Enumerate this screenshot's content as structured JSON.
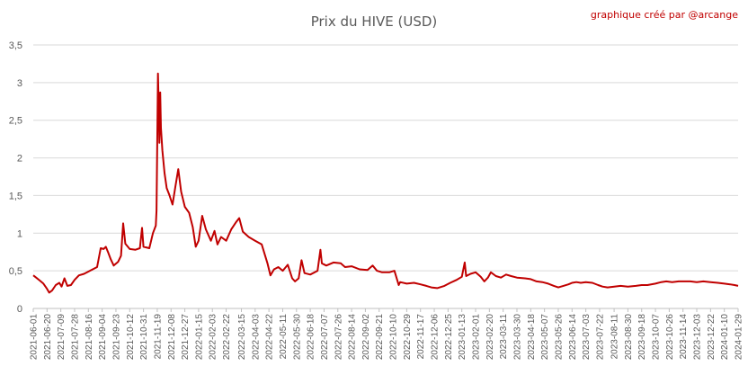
{
  "chart_data": {
    "type": "line",
    "title": "Prix du HIVE (USD)",
    "credit": "graphique créé par @arcange",
    "xlabel": "",
    "ylabel": "",
    "ylim": [
      0,
      3.5
    ],
    "y_ticks": [
      "0",
      "0,5",
      "1",
      "1,5",
      "2",
      "2,5",
      "3",
      "3,5"
    ],
    "y_tick_values": [
      0,
      0.5,
      1,
      1.5,
      2,
      2.5,
      3,
      3.5
    ],
    "x_range": [
      "2021-06-01",
      "2024-01-29"
    ],
    "x_ticks": [
      "2021-06-01",
      "2021-06-20",
      "2021-07-09",
      "2021-07-28",
      "2021-08-16",
      "2021-09-04",
      "2021-09-23",
      "2021-10-12",
      "2021-10-31",
      "2021-11-19",
      "2021-12-08",
      "2021-12-27",
      "2022-01-15",
      "2022-02-03",
      "2022-02-22",
      "2022-03-15",
      "2022-04-03",
      "2022-04-22",
      "2022-05-11",
      "2022-05-30",
      "2022-06-18",
      "2022-07-07",
      "2022-07-26",
      "2022-08-14",
      "2022-09-02",
      "2022-09-21",
      "2022-10-10",
      "2022-10-29",
      "2022-11-17",
      "2022-12-06",
      "2022-12-25",
      "2023-01-13",
      "2023-02-01",
      "2023-02-20",
      "2023-03-11",
      "2023-03-30",
      "2023-04-18",
      "2023-05-07",
      "2023-05-26",
      "2023-06-14",
      "2023-07-03",
      "2023-07-22",
      "2023-08-11",
      "2023-08-30",
      "2023-09-18",
      "2023-10-07",
      "2023-10-26",
      "2023-11-14",
      "2023-12-03",
      "2023-12-22",
      "2024-01-10",
      "2024-01-29"
    ],
    "gridlines": true,
    "legend": "none",
    "series": [
      {
        "color": "#c00000",
        "points": [
          [
            "2021-06-01",
            0.44
          ],
          [
            "2021-06-05",
            0.41
          ],
          [
            "2021-06-10",
            0.37
          ],
          [
            "2021-06-15",
            0.33
          ],
          [
            "2021-06-20",
            0.26
          ],
          [
            "2021-06-23",
            0.21
          ],
          [
            "2021-06-27",
            0.24
          ],
          [
            "2021-07-02",
            0.31
          ],
          [
            "2021-07-07",
            0.34
          ],
          [
            "2021-07-10",
            0.29
          ],
          [
            "2021-07-14",
            0.4
          ],
          [
            "2021-07-18",
            0.3
          ],
          [
            "2021-07-23",
            0.31
          ],
          [
            "2021-07-28",
            0.38
          ],
          [
            "2021-08-03",
            0.44
          ],
          [
            "2021-08-10",
            0.46
          ],
          [
            "2021-08-16",
            0.49
          ],
          [
            "2021-08-22",
            0.52
          ],
          [
            "2021-08-28",
            0.55
          ],
          [
            "2021-09-02",
            0.8
          ],
          [
            "2021-09-06",
            0.79
          ],
          [
            "2021-09-09",
            0.82
          ],
          [
            "2021-09-12",
            0.75
          ],
          [
            "2021-09-16",
            0.65
          ],
          [
            "2021-09-20",
            0.57
          ],
          [
            "2021-09-26",
            0.62
          ],
          [
            "2021-09-30",
            0.7
          ],
          [
            "2021-10-03",
            1.13
          ],
          [
            "2021-10-06",
            0.86
          ],
          [
            "2021-10-12",
            0.79
          ],
          [
            "2021-10-20",
            0.78
          ],
          [
            "2021-10-26",
            0.8
          ],
          [
            "2021-10-29",
            1.07
          ],
          [
            "2021-10-31",
            0.82
          ],
          [
            "2021-11-08",
            0.8
          ],
          [
            "2021-11-13",
            1.0
          ],
          [
            "2021-11-17",
            1.1
          ],
          [
            "2021-11-18",
            1.3
          ],
          [
            "2021-11-19",
            2.2
          ],
          [
            "2021-11-20",
            3.12
          ],
          [
            "2021-11-21",
            2.7
          ],
          [
            "2021-11-22",
            2.2
          ],
          [
            "2021-11-23",
            2.87
          ],
          [
            "2021-11-24",
            2.4
          ],
          [
            "2021-11-26",
            2.1
          ],
          [
            "2021-11-29",
            1.8
          ],
          [
            "2021-12-02",
            1.6
          ],
          [
            "2021-12-06",
            1.5
          ],
          [
            "2021-12-10",
            1.38
          ],
          [
            "2021-12-14",
            1.62
          ],
          [
            "2021-12-18",
            1.85
          ],
          [
            "2021-12-22",
            1.55
          ],
          [
            "2021-12-27",
            1.35
          ],
          [
            "2022-01-02",
            1.27
          ],
          [
            "2022-01-07",
            1.08
          ],
          [
            "2022-01-11",
            0.82
          ],
          [
            "2022-01-15",
            0.9
          ],
          [
            "2022-01-20",
            1.23
          ],
          [
            "2022-01-25",
            1.05
          ],
          [
            "2022-02-01",
            0.9
          ],
          [
            "2022-02-06",
            1.03
          ],
          [
            "2022-02-10",
            0.85
          ],
          [
            "2022-02-15",
            0.95
          ],
          [
            "2022-02-22",
            0.9
          ],
          [
            "2022-03-01",
            1.05
          ],
          [
            "2022-03-08",
            1.15
          ],
          [
            "2022-03-12",
            1.2
          ],
          [
            "2022-03-17",
            1.02
          ],
          [
            "2022-03-25",
            0.95
          ],
          [
            "2022-04-03",
            0.9
          ],
          [
            "2022-04-12",
            0.85
          ],
          [
            "2022-04-20",
            0.6
          ],
          [
            "2022-04-24",
            0.44
          ],
          [
            "2022-04-29",
            0.52
          ],
          [
            "2022-05-05",
            0.55
          ],
          [
            "2022-05-11",
            0.5
          ],
          [
            "2022-05-18",
            0.58
          ],
          [
            "2022-05-24",
            0.4
          ],
          [
            "2022-05-28",
            0.36
          ],
          [
            "2022-06-02",
            0.4
          ],
          [
            "2022-06-06",
            0.64
          ],
          [
            "2022-06-10",
            0.47
          ],
          [
            "2022-06-18",
            0.45
          ],
          [
            "2022-06-28",
            0.5
          ],
          [
            "2022-07-02",
            0.78
          ],
          [
            "2022-07-04",
            0.6
          ],
          [
            "2022-07-10",
            0.57
          ],
          [
            "2022-07-20",
            0.61
          ],
          [
            "2022-07-30",
            0.6
          ],
          [
            "2022-08-05",
            0.55
          ],
          [
            "2022-08-14",
            0.56
          ],
          [
            "2022-08-25",
            0.52
          ],
          [
            "2022-09-05",
            0.51
          ],
          [
            "2022-09-12",
            0.57
          ],
          [
            "2022-09-18",
            0.5
          ],
          [
            "2022-09-25",
            0.48
          ],
          [
            "2022-10-05",
            0.48
          ],
          [
            "2022-10-12",
            0.5
          ],
          [
            "2022-10-18",
            0.31
          ],
          [
            "2022-10-20",
            0.35
          ],
          [
            "2022-10-29",
            0.33
          ],
          [
            "2022-11-08",
            0.34
          ],
          [
            "2022-11-17",
            0.32
          ],
          [
            "2022-11-25",
            0.3
          ],
          [
            "2022-12-02",
            0.28
          ],
          [
            "2022-12-10",
            0.27
          ],
          [
            "2022-12-20",
            0.3
          ],
          [
            "2022-12-28",
            0.34
          ],
          [
            "2023-01-06",
            0.38
          ],
          [
            "2023-01-13",
            0.42
          ],
          [
            "2023-01-17",
            0.61
          ],
          [
            "2023-01-19",
            0.43
          ],
          [
            "2023-01-25",
            0.46
          ],
          [
            "2023-02-01",
            0.48
          ],
          [
            "2023-02-08",
            0.42
          ],
          [
            "2023-02-13",
            0.36
          ],
          [
            "2023-02-18",
            0.41
          ],
          [
            "2023-02-22",
            0.48
          ],
          [
            "2023-03-01",
            0.43
          ],
          [
            "2023-03-08",
            0.41
          ],
          [
            "2023-03-15",
            0.45
          ],
          [
            "2023-03-22",
            0.43
          ],
          [
            "2023-03-30",
            0.41
          ],
          [
            "2023-04-10",
            0.4
          ],
          [
            "2023-04-18",
            0.39
          ],
          [
            "2023-04-26",
            0.36
          ],
          [
            "2023-05-04",
            0.35
          ],
          [
            "2023-05-12",
            0.33
          ],
          [
            "2023-05-20",
            0.3
          ],
          [
            "2023-05-26",
            0.28
          ],
          [
            "2023-06-02",
            0.3
          ],
          [
            "2023-06-09",
            0.32
          ],
          [
            "2023-06-14",
            0.34
          ],
          [
            "2023-06-20",
            0.35
          ],
          [
            "2023-06-26",
            0.34
          ],
          [
            "2023-07-03",
            0.35
          ],
          [
            "2023-07-12",
            0.34
          ],
          [
            "2023-07-20",
            0.31
          ],
          [
            "2023-07-26",
            0.29
          ],
          [
            "2023-08-02",
            0.28
          ],
          [
            "2023-08-11",
            0.29
          ],
          [
            "2023-08-20",
            0.3
          ],
          [
            "2023-08-30",
            0.29
          ],
          [
            "2023-09-10",
            0.3
          ],
          [
            "2023-09-18",
            0.31
          ],
          [
            "2023-09-26",
            0.31
          ],
          [
            "2023-10-07",
            0.33
          ],
          [
            "2023-10-15",
            0.35
          ],
          [
            "2023-10-22",
            0.36
          ],
          [
            "2023-10-30",
            0.35
          ],
          [
            "2023-11-08",
            0.36
          ],
          [
            "2023-11-14",
            0.36
          ],
          [
            "2023-11-24",
            0.36
          ],
          [
            "2023-12-03",
            0.35
          ],
          [
            "2023-12-12",
            0.36
          ],
          [
            "2023-12-22",
            0.35
          ],
          [
            "2024-01-01",
            0.34
          ],
          [
            "2024-01-10",
            0.33
          ],
          [
            "2024-01-18",
            0.32
          ],
          [
            "2024-01-24",
            0.31
          ],
          [
            "2024-01-29",
            0.3
          ]
        ]
      }
    ]
  }
}
